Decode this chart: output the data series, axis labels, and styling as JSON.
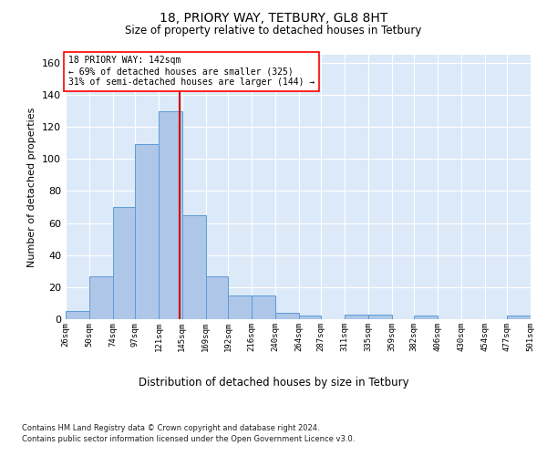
{
  "title1": "18, PRIORY WAY, TETBURY, GL8 8HT",
  "title2": "Size of property relative to detached houses in Tetbury",
  "xlabel": "Distribution of detached houses by size in Tetbury",
  "ylabel": "Number of detached properties",
  "footnote1": "Contains HM Land Registry data © Crown copyright and database right 2024.",
  "footnote2": "Contains public sector information licensed under the Open Government Licence v3.0.",
  "annotation_line1": "18 PRIORY WAY: 142sqm",
  "annotation_line2": "← 69% of detached houses are smaller (325)",
  "annotation_line3": "31% of semi-detached houses are larger (144) →",
  "bar_color": "#aec6e8",
  "bar_edge_color": "#5b9bd5",
  "background_color": "#dce9f8",
  "grid_color": "#ffffff",
  "vline_color": "#cc0000",
  "vline_x": 142,
  "bin_edges": [
    26,
    50,
    74,
    97,
    121,
    145,
    169,
    192,
    216,
    240,
    264,
    287,
    311,
    335,
    359,
    382,
    406,
    430,
    454,
    477,
    501
  ],
  "bar_heights": [
    5,
    27,
    70,
    109,
    130,
    65,
    27,
    15,
    15,
    4,
    2,
    0,
    3,
    3,
    0,
    2,
    0,
    0,
    0,
    2
  ],
  "ylim": [
    0,
    165
  ],
  "yticks": [
    0,
    20,
    40,
    60,
    80,
    100,
    120,
    140,
    160
  ]
}
